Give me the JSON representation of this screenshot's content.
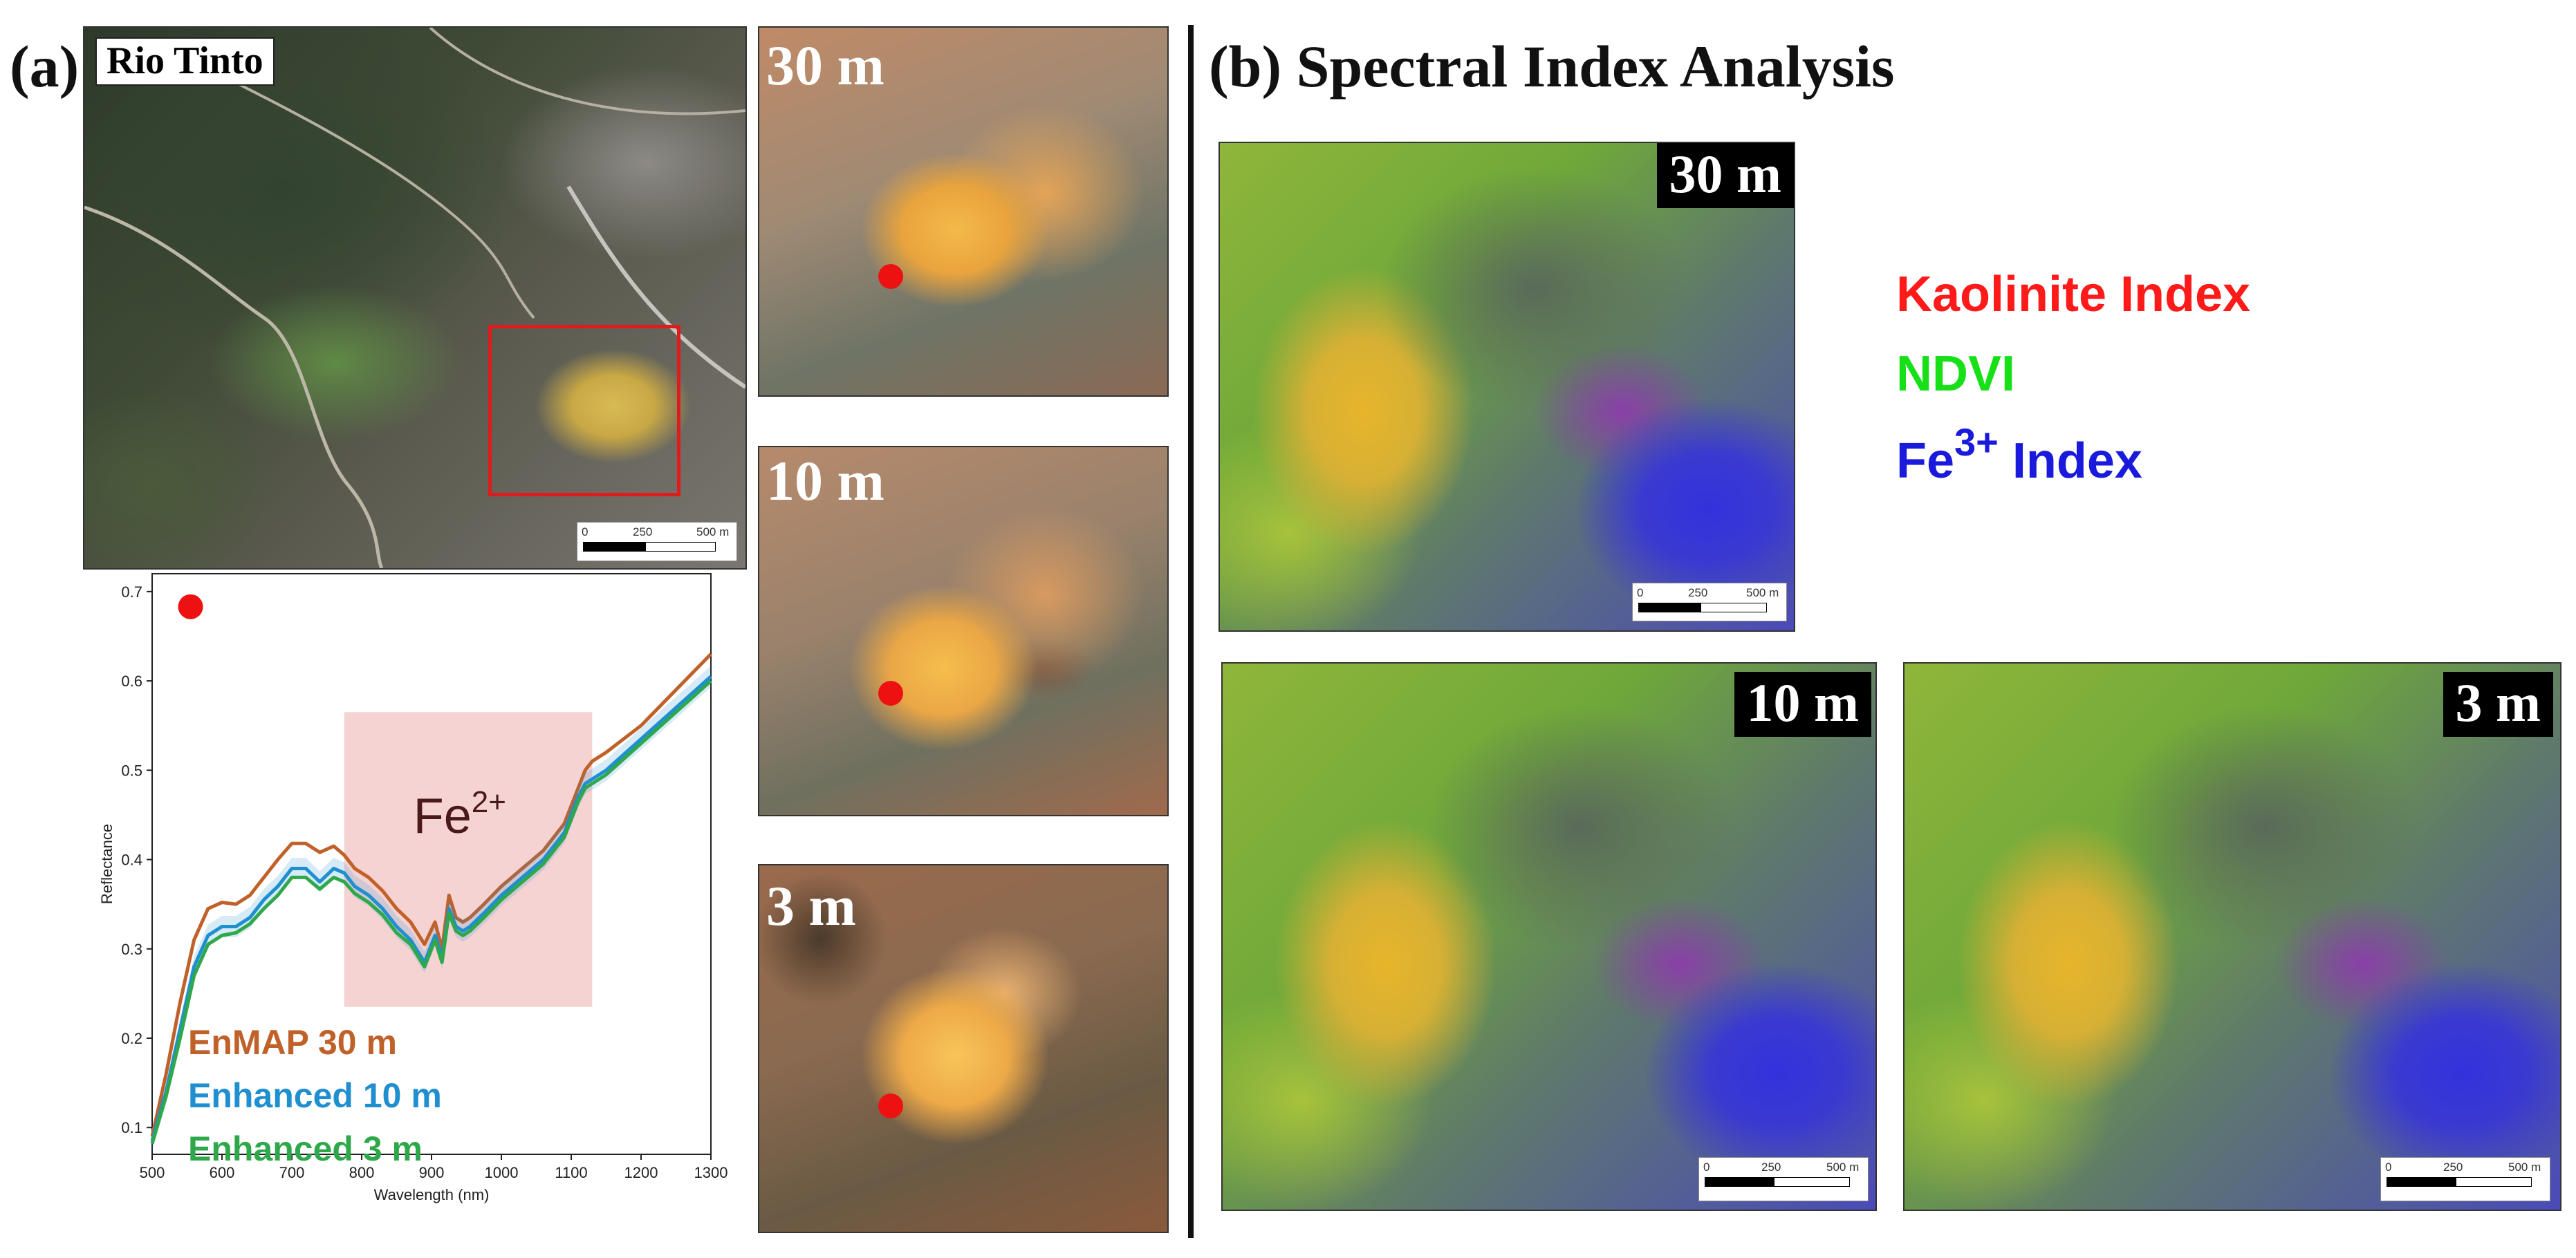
{
  "panel_a": {
    "letter": "(a)",
    "location_label": "Rio Tinto",
    "scale_labels": [
      "0",
      "250",
      "500 m"
    ],
    "tiles": [
      {
        "label": "30 m"
      },
      {
        "label": "10 m"
      },
      {
        "label": "3 m"
      }
    ],
    "marker_color": "#ee1111",
    "box_color": "#e01b1b"
  },
  "panel_b": {
    "letter": "(b)",
    "title": "Spectral Index Analysis",
    "maps": [
      {
        "label": "30 m"
      },
      {
        "label": "10 m"
      },
      {
        "label": "3 m"
      }
    ],
    "scale_labels": [
      "0",
      "250",
      "500 m"
    ],
    "legend": [
      {
        "text": "Kaolinite Index",
        "color": "#ff1a1a"
      },
      {
        "text": "NDVI",
        "color": "#18e018"
      },
      {
        "prefix": "Fe",
        "sup": "3+",
        "suffix": " Index",
        "color": "#1a1add"
      }
    ]
  },
  "chart_data": {
    "type": "line",
    "xlabel": "Wavelength (nm)",
    "ylabel": "Reflectance",
    "xlim": [
      500,
      1300
    ],
    "ylim": [
      0.07,
      0.72
    ],
    "xticks": [
      500,
      600,
      700,
      800,
      900,
      1000,
      1100,
      1200,
      1300
    ],
    "yticks": [
      0.1,
      0.2,
      0.3,
      0.4,
      0.5,
      0.6,
      0.7
    ],
    "annotation": {
      "base": "Fe",
      "sup": "2+",
      "x_range": [
        775,
        1130
      ],
      "y_range": [
        0.235,
        0.565
      ]
    },
    "series": [
      {
        "name": "EnMAP 30 m",
        "color": "#c0612a",
        "x": [
          500,
          520,
          540,
          560,
          580,
          600,
          620,
          640,
          660,
          680,
          700,
          720,
          740,
          760,
          775,
          790,
          810,
          830,
          850,
          870,
          890,
          905,
          915,
          925,
          935,
          945,
          955,
          975,
          1000,
          1030,
          1060,
          1090,
          1110,
          1120,
          1130,
          1150,
          1200,
          1250,
          1300
        ],
        "y": [
          0.09,
          0.16,
          0.24,
          0.31,
          0.345,
          0.352,
          0.35,
          0.36,
          0.38,
          0.4,
          0.418,
          0.418,
          0.408,
          0.415,
          0.405,
          0.39,
          0.38,
          0.365,
          0.345,
          0.33,
          0.305,
          0.33,
          0.3,
          0.36,
          0.335,
          0.33,
          0.335,
          0.35,
          0.37,
          0.39,
          0.41,
          0.44,
          0.48,
          0.5,
          0.51,
          0.52,
          0.55,
          0.59,
          0.63
        ]
      },
      {
        "name": "Enhanced 10 m",
        "color": "#1f8fd0",
        "x": [
          500,
          520,
          540,
          560,
          580,
          600,
          620,
          640,
          660,
          680,
          700,
          720,
          740,
          760,
          775,
          790,
          810,
          830,
          850,
          870,
          890,
          905,
          915,
          925,
          935,
          945,
          955,
          975,
          1000,
          1030,
          1060,
          1090,
          1110,
          1120,
          1130,
          1150,
          1200,
          1250,
          1300
        ],
        "y": [
          0.085,
          0.14,
          0.21,
          0.28,
          0.315,
          0.325,
          0.325,
          0.335,
          0.355,
          0.37,
          0.39,
          0.39,
          0.375,
          0.39,
          0.385,
          0.37,
          0.36,
          0.345,
          0.325,
          0.31,
          0.285,
          0.315,
          0.29,
          0.345,
          0.325,
          0.32,
          0.325,
          0.34,
          0.36,
          0.38,
          0.4,
          0.43,
          0.47,
          0.485,
          0.49,
          0.5,
          0.535,
          0.57,
          0.605
        ]
      },
      {
        "name": "Enhanced 3 m",
        "color": "#2ea84a",
        "x": [
          500,
          520,
          540,
          560,
          580,
          600,
          620,
          640,
          660,
          680,
          700,
          720,
          740,
          760,
          775,
          790,
          810,
          830,
          850,
          870,
          890,
          905,
          915,
          925,
          935,
          945,
          955,
          975,
          1000,
          1030,
          1060,
          1090,
          1110,
          1120,
          1130,
          1150,
          1200,
          1250,
          1300
        ],
        "y": [
          0.082,
          0.135,
          0.2,
          0.27,
          0.305,
          0.315,
          0.318,
          0.328,
          0.345,
          0.36,
          0.38,
          0.38,
          0.367,
          0.38,
          0.375,
          0.362,
          0.352,
          0.338,
          0.318,
          0.305,
          0.28,
          0.31,
          0.285,
          0.34,
          0.32,
          0.315,
          0.32,
          0.335,
          0.355,
          0.375,
          0.395,
          0.425,
          0.465,
          0.48,
          0.485,
          0.495,
          0.53,
          0.565,
          0.6
        ]
      }
    ],
    "marker": {
      "x": 555,
      "y": 0.683,
      "color": "#ee1111"
    }
  }
}
